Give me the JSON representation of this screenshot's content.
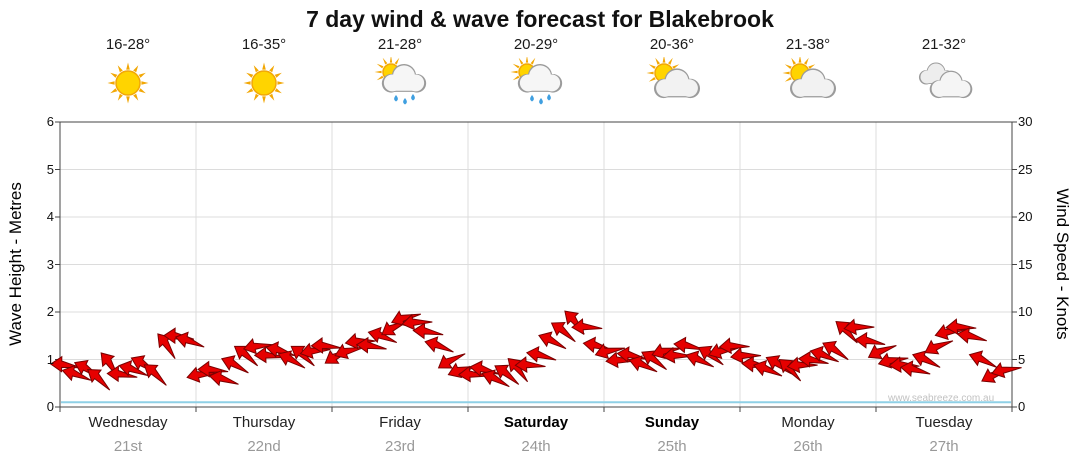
{
  "title": "7 day wind & wave forecast for Blakebrook",
  "watermark": "www.seabreeze.com.au",
  "axes": {
    "left_label": "Wave Height - Metres",
    "right_label": "Wind Speed - Knots",
    "left_ticks": [
      0,
      1,
      2,
      3,
      4,
      5,
      6
    ],
    "right_ticks": [
      0,
      5,
      10,
      15,
      20,
      25,
      30
    ]
  },
  "days": [
    {
      "name": "Wednesday",
      "date": "21st",
      "temp": "16-28°",
      "icon": "sunny",
      "bold": false
    },
    {
      "name": "Thursday",
      "date": "22nd",
      "temp": "16-35°",
      "icon": "sunny",
      "bold": false
    },
    {
      "name": "Friday",
      "date": "23rd",
      "temp": "21-28°",
      "icon": "sun-showers",
      "bold": false
    },
    {
      "name": "Saturday",
      "date": "24th",
      "temp": "20-29°",
      "icon": "sun-showers",
      "bold": true
    },
    {
      "name": "Sunday",
      "date": "25th",
      "temp": "20-36°",
      "icon": "partly-cloudy",
      "bold": true
    },
    {
      "name": "Monday",
      "date": "26th",
      "temp": "21-38°",
      "icon": "partly-cloudy",
      "bold": false
    },
    {
      "name": "Tuesday",
      "date": "27th",
      "temp": "21-32°",
      "icon": "cloudy",
      "bold": false
    }
  ],
  "chart_data": {
    "type": "line",
    "title": "7 day wind & wave forecast for Blakebrook",
    "categories": [
      "Wednesday 21st",
      "Thursday 22nd",
      "Friday 23rd",
      "Saturday 24th",
      "Sunday 25th",
      "Monday 26th",
      "Tuesday 27th"
    ],
    "points_per_day": 12,
    "ylabel_left": "Wave Height - Metres",
    "ylim_left": [
      0,
      6
    ],
    "ylabel_right": "Wind Speed - Knots",
    "ylim_right": [
      0,
      30
    ],
    "grid": true,
    "series": [
      {
        "name": "Wind Speed (knots)",
        "style": "red-wind-arrows",
        "values": [
          4.5,
          3.5,
          4,
          3,
          4.5,
          3.5,
          4,
          4.5,
          3.5,
          6.5,
          7.5,
          7,
          3.5,
          4,
          3,
          4.5,
          5.5,
          6.5,
          5.5,
          6,
          5,
          5.5,
          6,
          6.5,
          5.5,
          6,
          7,
          6.5,
          7.5,
          8.5,
          9.5,
          9,
          8,
          6.5,
          5,
          4,
          3.5,
          4,
          3,
          3.5,
          4,
          4.5,
          5.5,
          7,
          8,
          9,
          8.5,
          6.5,
          6,
          5,
          5.5,
          4.5,
          5,
          6,
          5.5,
          6.5,
          5,
          5.5,
          6,
          6.5,
          5.5,
          4.5,
          4,
          4.5,
          4,
          4.5,
          5,
          5.5,
          6,
          8,
          8.5,
          7,
          6,
          5,
          4.5,
          4,
          5,
          6.5,
          8,
          8.5,
          7.5,
          5,
          3.5,
          4
        ]
      },
      {
        "name": "Wind Direction (deg)",
        "values": [
          181,
          193,
          205,
          217,
          229,
          181,
          193,
          205,
          217,
          229,
          181,
          193,
          166,
          178,
          190,
          202,
          214,
          166,
          178,
          190,
          202,
          214,
          166,
          178,
          146,
          158,
          170,
          182,
          194,
          146,
          158,
          170,
          182,
          194,
          146,
          158,
          176,
          188,
          200,
          212,
          224,
          176,
          188,
          200,
          212,
          224,
          176,
          188,
          161,
          173,
          185,
          197,
          209,
          161,
          173,
          185,
          197,
          209,
          161,
          173,
          171,
          183,
          195,
          207,
          219,
          171,
          183,
          195,
          207,
          219,
          171,
          183,
          151,
          163,
          175,
          187,
          199,
          151,
          163,
          175,
          187,
          199,
          151,
          163
        ]
      },
      {
        "name": "Wave Height (m)",
        "style": "flat-blue-line",
        "constant": 0.1
      }
    ]
  }
}
